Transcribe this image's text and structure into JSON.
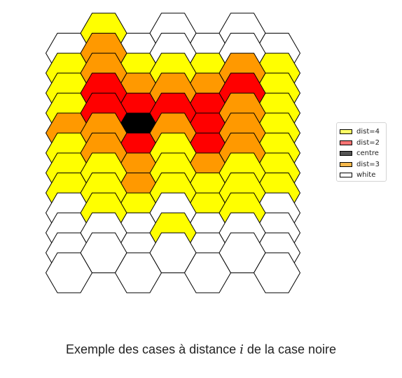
{
  "colors": {
    "centre": "#000000",
    "dist-2": "#ff0000",
    "dist-3": "#ff9900",
    "dist-4": "#ffff00",
    "white": "#ffffff"
  },
  "grid": {
    "columns": 7,
    "rows": [
      [
        "white",
        "dist-4",
        "white",
        "white",
        "white",
        "white",
        "white"
      ],
      [
        "dist-4",
        "dist-3",
        "dist-4",
        "white",
        "dist-4",
        "white",
        "dist-4"
      ],
      [
        "dist-4",
        "dist-3",
        "dist-3",
        "dist-4",
        "dist-3",
        "dist-3",
        "dist-4"
      ],
      [
        "dist-4",
        "dist-2",
        "dist-2",
        "dist-3",
        "dist-2",
        "dist-2",
        "dist-4"
      ],
      [
        "dist-3",
        "dist-2",
        "centre",
        "dist-2",
        "dist-2",
        "dist-3",
        "dist-4"
      ],
      [
        "dist-4",
        "dist-3",
        "dist-2",
        "dist-3",
        "dist-2",
        "dist-3",
        "dist-4"
      ],
      [
        "dist-4",
        "dist-3",
        "dist-3",
        "dist-4",
        "dist-3",
        "dist-3",
        "dist-4"
      ],
      [
        "dist-4",
        "dist-4",
        "dist-3",
        "dist-4",
        "dist-4",
        "dist-4",
        "dist-4"
      ],
      [
        "white",
        "dist-4",
        "dist-4",
        "dist-4",
        "dist-4",
        "dist-4",
        "white"
      ],
      [
        "white",
        "dist-4",
        "white",
        "white",
        "white",
        "dist-4",
        "white"
      ],
      [
        "white",
        "white",
        "white",
        "dist-4",
        "white",
        "white",
        "white"
      ],
      [
        "white",
        "white",
        "white",
        "white",
        "white",
        "white",
        "white"
      ]
    ]
  },
  "legend": [
    {
      "label": "dist=4",
      "color": "#ffff66"
    },
    {
      "label": "dist=2",
      "color": "#f87474"
    },
    {
      "label": "centre",
      "color": "#555555"
    },
    {
      "label": "dist=3",
      "color": "#f5b84c"
    },
    {
      "label": "white",
      "color": "#ffffff"
    }
  ],
  "caption": {
    "before": "Exemple des cases à distance ",
    "variable": "i",
    "after": " de la case noire"
  }
}
